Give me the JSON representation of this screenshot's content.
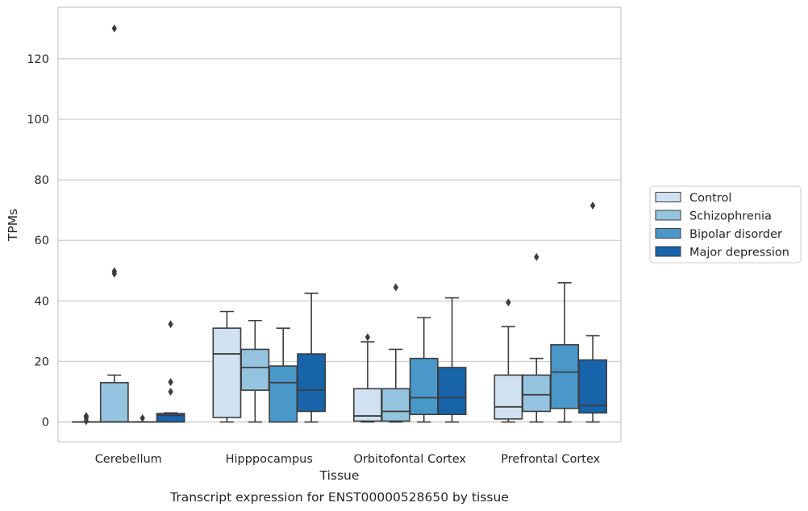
{
  "chart_data": {
    "type": "box",
    "title": "",
    "caption": "Transcript expression for ENST00000528650 by tissue",
    "xlabel": "Tissue",
    "ylabel": "TPMs",
    "ylim": [
      -6.5,
      137
    ],
    "yticks": [
      0,
      20,
      40,
      60,
      80,
      100,
      120
    ],
    "grid": true,
    "legend_position": "right",
    "categories": [
      "Cerebellum",
      "Hipppocampus",
      "Orbitofontal Cortex",
      "Prefrontal Cortex"
    ],
    "series": [
      {
        "name": "Control",
        "color": "#d0e1f2",
        "boxes": [
          {
            "q1": 0,
            "median": 0,
            "q3": 0,
            "whislo": 0,
            "whishi": 0,
            "fliers": [
              0.3,
              1.3,
              2.0
            ]
          },
          {
            "q1": 1.5,
            "median": 22.5,
            "q3": 31,
            "whislo": 0,
            "whishi": 36.5,
            "fliers": []
          },
          {
            "q1": 0.3,
            "median": 2,
            "q3": 11,
            "whislo": 0,
            "whishi": 26.5,
            "fliers": [
              28
            ]
          },
          {
            "q1": 1,
            "median": 5,
            "q3": 15.5,
            "whislo": 0,
            "whishi": 31.5,
            "fliers": [
              39.5
            ]
          }
        ]
      },
      {
        "name": "Schizophrenia",
        "color": "#94c4df",
        "boxes": [
          {
            "q1": 0,
            "median": 0,
            "q3": 13,
            "whislo": 0,
            "whishi": 15.5,
            "fliers": [
              49,
              49.8,
              130
            ]
          },
          {
            "q1": 10.5,
            "median": 18,
            "q3": 24,
            "whislo": 0,
            "whishi": 33.5,
            "fliers": []
          },
          {
            "q1": 0.3,
            "median": 3.5,
            "q3": 11,
            "whislo": 0,
            "whishi": 24,
            "fliers": [
              44.5
            ]
          },
          {
            "q1": 3.5,
            "median": 9,
            "q3": 15.5,
            "whislo": 0,
            "whishi": 21,
            "fliers": [
              54.5
            ]
          }
        ]
      },
      {
        "name": "Bipolar disorder",
        "color": "#4a98c9",
        "boxes": [
          {
            "q1": 0,
            "median": 0,
            "q3": 0,
            "whislo": 0,
            "whishi": 0,
            "fliers": [
              1.3
            ]
          },
          {
            "q1": 0,
            "median": 13,
            "q3": 18.5,
            "whislo": 0,
            "whishi": 31,
            "fliers": []
          },
          {
            "q1": 2.5,
            "median": 8,
            "q3": 21,
            "whislo": 0,
            "whishi": 34.5,
            "fliers": []
          },
          {
            "q1": 4.5,
            "median": 16.5,
            "q3": 25.5,
            "whislo": 0,
            "whishi": 46,
            "fliers": []
          }
        ]
      },
      {
        "name": "Major depression",
        "color": "#1764ab",
        "boxes": [
          {
            "q1": 0,
            "median": 2.2,
            "q3": 2.8,
            "whislo": 0,
            "whishi": 3,
            "fliers": [
              10,
              13.2,
              32.3
            ]
          },
          {
            "q1": 3.5,
            "median": 10.5,
            "q3": 22.5,
            "whislo": 0,
            "whishi": 42.5,
            "fliers": []
          },
          {
            "q1": 2.5,
            "median": 8,
            "q3": 18,
            "whislo": 0,
            "whishi": 41,
            "fliers": []
          },
          {
            "q1": 3,
            "median": 5.5,
            "q3": 20.5,
            "whislo": 0,
            "whishi": 28.5,
            "fliers": [
              71.5
            ]
          }
        ]
      }
    ]
  }
}
